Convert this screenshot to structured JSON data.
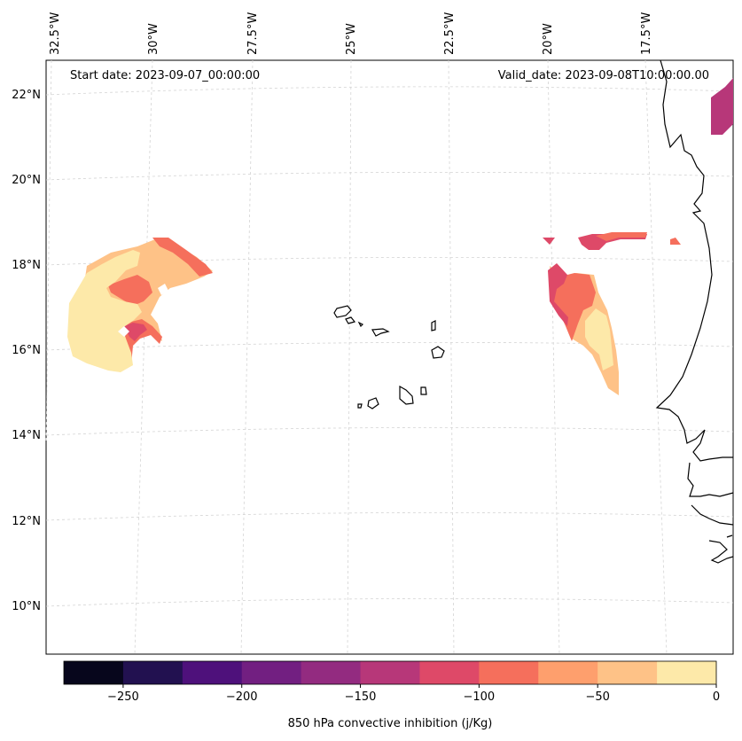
{
  "header": {
    "start_date": "Start date: 2023-09-07_00:00:00",
    "valid_date": "Valid_date: 2023-09-08T10:00:00.00"
  },
  "axes": {
    "longitude_labels": [
      "32.5°W",
      "30°W",
      "27.5°W",
      "25°W",
      "22.5°W",
      "20°W",
      "17.5°W"
    ],
    "latitude_labels": [
      "22°N",
      "20°N",
      "18°N",
      "16°N",
      "14°N",
      "12°N",
      "10°N"
    ]
  },
  "colorbar": {
    "title": "850 hPa convective inhibition (j/Kg)",
    "min": -275,
    "max": 0,
    "step": 25,
    "tick_values": [
      -250,
      -200,
      -150,
      -100,
      -50,
      0
    ],
    "tick_labels": [
      "−250",
      "−200",
      "−150",
      "−100",
      "−50",
      "0"
    ],
    "colors": [
      "#07061c",
      "#221150",
      "#4e117b",
      "#721f81",
      "#932b80",
      "#b73779",
      "#de4968",
      "#f56f5c",
      "#fe9f6d",
      "#fec287",
      "#fde9a9"
    ]
  },
  "colors": {
    "coastline": "#000000",
    "gridline": "#d0d0d0",
    "frame": "#000000"
  }
}
